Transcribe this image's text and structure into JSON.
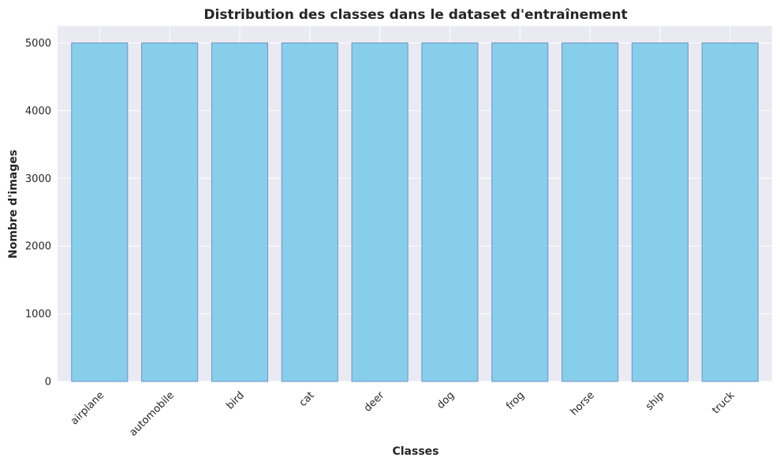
{
  "chart_data": {
    "type": "bar",
    "title": "Distribution des classes dans le dataset d'entraînement",
    "xlabel": "Classes",
    "ylabel": "Nombre d'images",
    "categories": [
      "airplane",
      "automobile",
      "bird",
      "cat",
      "deer",
      "dog",
      "frog",
      "horse",
      "ship",
      "truck"
    ],
    "values": [
      5000,
      5000,
      5000,
      5000,
      5000,
      5000,
      5000,
      5000,
      5000,
      5000
    ],
    "ylim": [
      0,
      5250
    ],
    "yticks": [
      0,
      1000,
      2000,
      3000,
      4000,
      5000
    ],
    "grid": true,
    "legend": "none",
    "colors": {
      "bar_fill": "#87ceeb",
      "bar_edge": "#6f93c9",
      "plot_bg": "#eaeaf2",
      "grid": "#ffffff"
    }
  }
}
